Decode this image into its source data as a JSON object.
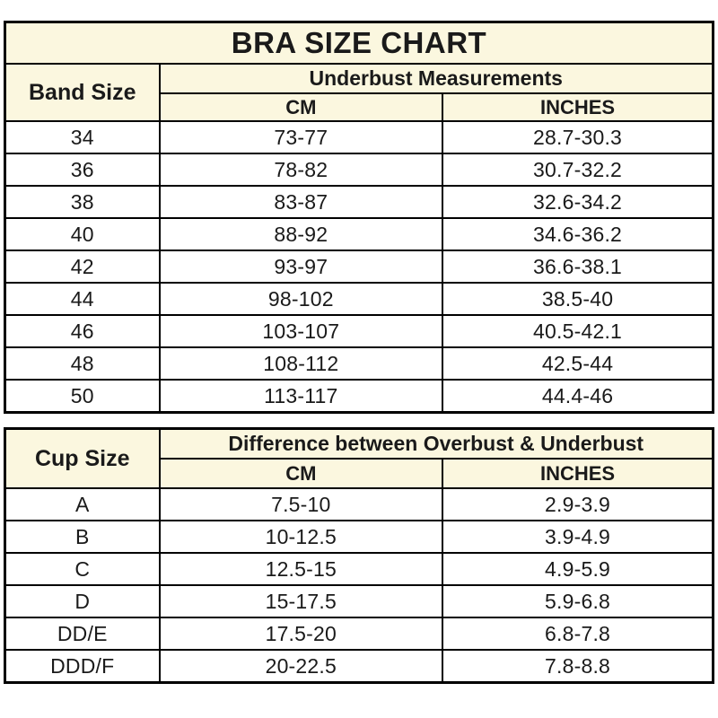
{
  "colors": {
    "header_background": "#fbf7df",
    "row_background": "#ffffff",
    "border": "#000000",
    "text": "#1a1a1a"
  },
  "band_table": {
    "title": "BRA SIZE CHART",
    "col1_header": "Band Size",
    "group_header": "Underbust Measurements",
    "sub_headers": [
      "CM",
      "INCHES"
    ],
    "rows": [
      [
        "34",
        "73-77",
        "28.7-30.3"
      ],
      [
        "36",
        "78-82",
        "30.7-32.2"
      ],
      [
        "38",
        "83-87",
        "32.6-34.2"
      ],
      [
        "40",
        "88-92",
        "34.6-36.2"
      ],
      [
        "42",
        "93-97",
        "36.6-38.1"
      ],
      [
        "44",
        "98-102",
        "38.5-40"
      ],
      [
        "46",
        "103-107",
        "40.5-42.1"
      ],
      [
        "48",
        "108-112",
        "42.5-44"
      ],
      [
        "50",
        "113-117",
        "44.4-46"
      ]
    ]
  },
  "cup_table": {
    "col1_header": "Cup Size",
    "group_header": "Difference between Overbust & Underbust",
    "sub_headers": [
      "CM",
      "INCHES"
    ],
    "rows": [
      [
        "A",
        "7.5-10",
        "2.9-3.9"
      ],
      [
        "B",
        "10-12.5",
        "3.9-4.9"
      ],
      [
        "C",
        "12.5-15",
        "4.9-5.9"
      ],
      [
        "D",
        "15-17.5",
        "5.9-6.8"
      ],
      [
        "DD/E",
        "17.5-20",
        "6.8-7.8"
      ],
      [
        "DDD/F",
        "20-22.5",
        "7.8-8.8"
      ]
    ]
  },
  "chart_data": [
    {
      "type": "table",
      "title": "BRA SIZE CHART",
      "columns": [
        "Band Size",
        "Underbust Measurements CM",
        "Underbust Measurements INCHES"
      ],
      "rows": [
        [
          "34",
          "73-77",
          "28.7-30.3"
        ],
        [
          "36",
          "78-82",
          "30.7-32.2"
        ],
        [
          "38",
          "83-87",
          "32.6-34.2"
        ],
        [
          "40",
          "88-92",
          "34.6-36.2"
        ],
        [
          "42",
          "93-97",
          "36.6-38.1"
        ],
        [
          "44",
          "98-102",
          "38.5-40"
        ],
        [
          "46",
          "103-107",
          "40.5-42.1"
        ],
        [
          "48",
          "108-112",
          "42.5-44"
        ],
        [
          "50",
          "113-117",
          "44.4-46"
        ]
      ]
    },
    {
      "type": "table",
      "title": "",
      "columns": [
        "Cup Size",
        "Difference between Overbust & Underbust CM",
        "Difference between Overbust & Underbust INCHES"
      ],
      "rows": [
        [
          "A",
          "7.5-10",
          "2.9-3.9"
        ],
        [
          "B",
          "10-12.5",
          "3.9-4.9"
        ],
        [
          "C",
          "12.5-15",
          "4.9-5.9"
        ],
        [
          "D",
          "15-17.5",
          "5.9-6.8"
        ],
        [
          "DD/E",
          "17.5-20",
          "6.8-7.8"
        ],
        [
          "DDD/F",
          "20-22.5",
          "7.8-8.8"
        ]
      ]
    }
  ]
}
